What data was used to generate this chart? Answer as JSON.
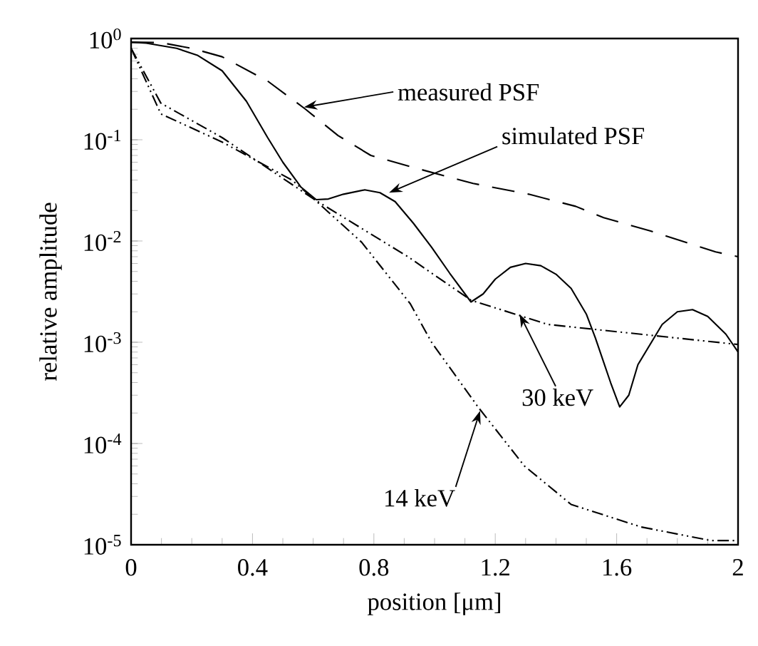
{
  "chart_data": {
    "type": "line",
    "xlabel": "position [μm]",
    "ylabel": "relative amplitude",
    "log": "y",
    "grid": false,
    "marker": "none",
    "xlim": [
      0,
      2
    ],
    "ylim": [
      1e-05,
      1
    ],
    "xticks": [
      0,
      0.4,
      0.8,
      1.2,
      1.6,
      2
    ],
    "yticks": [
      {
        "value": 1e-05,
        "label": "10$^{-5}$"
      },
      {
        "value": 0.0001,
        "label": "10$^{-4}$"
      },
      {
        "value": 0.001,
        "label": "10$^{-3}$"
      },
      {
        "value": 0.01,
        "label": "10$^{-2}$"
      },
      {
        "value": 0.1,
        "label": "10$^{-1}$"
      },
      {
        "value": 1,
        "label": "10$^{0}$"
      }
    ],
    "annotations": [
      {
        "text": "measured PSF",
        "x": 0.57,
        "y": 0.21
      },
      {
        "text": "simulated PSF",
        "x": 0.85,
        "y": 0.03
      },
      {
        "text": "30 keV",
        "x": 1.28,
        "y": 0.0019
      },
      {
        "text": "14 keV",
        "x": 1.15,
        "y": 0.00021
      }
    ],
    "series": [
      {
        "color": "#000000",
        "line_style": "dashed",
        "x": [
          0,
          0.098,
          0.2,
          0.3,
          0.45,
          0.575,
          0.682,
          0.79,
          0.943,
          1.127,
          1.31,
          1.465,
          1.557,
          1.71,
          1.926,
          2.0
        ],
        "values": [
          0.92,
          0.91,
          0.8,
          0.66,
          0.38,
          0.2,
          0.11,
          0.07,
          0.052,
          0.037,
          0.029,
          0.022,
          0.017,
          0.0126,
          0.0078,
          0.007
        ]
      },
      {
        "color": "#000000",
        "line_style": "solid",
        "x": [
          0,
          0.05,
          0.15,
          0.22,
          0.3,
          0.38,
          0.45,
          0.5,
          0.56,
          0.61,
          0.65,
          0.7,
          0.77,
          0.82,
          0.87,
          0.93,
          0.99,
          1.05,
          1.12,
          1.16,
          1.2,
          1.25,
          1.3,
          1.35,
          1.4,
          1.45,
          1.5,
          1.53,
          1.58,
          1.61,
          1.64,
          1.67,
          1.75,
          1.8,
          1.85,
          1.9,
          1.96,
          2.0
        ],
        "values": [
          0.92,
          0.9,
          0.8,
          0.68,
          0.48,
          0.24,
          0.105,
          0.06,
          0.034,
          0.0256,
          0.026,
          0.029,
          0.032,
          0.03,
          0.0245,
          0.015,
          0.0087,
          0.0048,
          0.0025,
          0.003,
          0.0042,
          0.0055,
          0.006,
          0.0057,
          0.0047,
          0.0034,
          0.0019,
          0.0011,
          0.0004,
          0.00023,
          0.0003,
          0.0006,
          0.0015,
          0.002,
          0.0021,
          0.0018,
          0.0012,
          0.0008
        ]
      },
      {
        "color": "#000000",
        "line_style": "dotted",
        "x": [
          0,
          0.098,
          0.3,
          0.605,
          0.912,
          1.12,
          1.373,
          1.68,
          2.0
        ],
        "values": [
          0.8,
          0.23,
          0.105,
          0.0256,
          0.007,
          0.0026,
          0.0015,
          0.0012,
          0.00095
        ]
      },
      {
        "color": "#000000",
        "line_style": "dotted",
        "x": [
          0,
          0.098,
          0.3,
          0.53,
          0.605,
          0.76,
          0.92,
          0.99,
          1.143,
          1.296,
          1.45,
          1.68,
          1.91,
          2.0
        ],
        "values": [
          0.8,
          0.18,
          0.095,
          0.04,
          0.0256,
          0.0097,
          0.0024,
          0.001,
          0.00023,
          6e-05,
          2.5e-05,
          1.5e-05,
          1.1e-05,
          1.1e-05
        ]
      }
    ]
  }
}
